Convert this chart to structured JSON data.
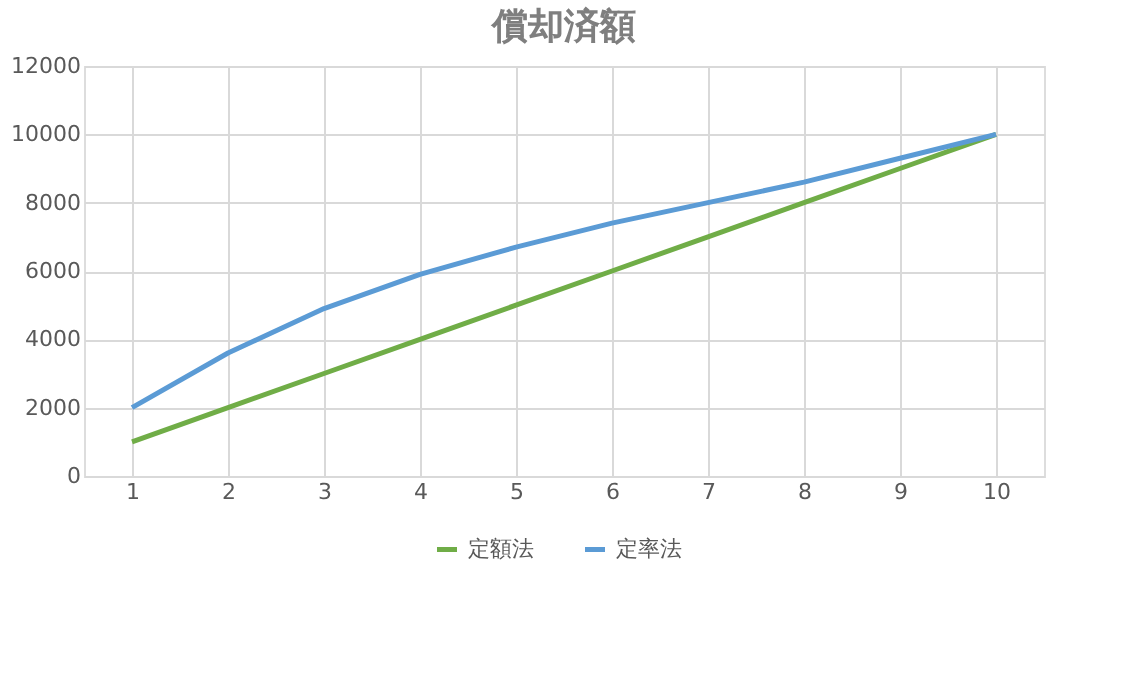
{
  "chart_data": {
    "type": "line",
    "title": "償却済額",
    "categories": [
      "1",
      "2",
      "3",
      "4",
      "5",
      "6",
      "7",
      "8",
      "9",
      "10"
    ],
    "series": [
      {
        "name": "定額法",
        "color": "#70ad47",
        "values": [
          1000,
          2000,
          3000,
          4000,
          5000,
          6000,
          7000,
          8000,
          9000,
          10000
        ]
      },
      {
        "name": "定率法",
        "color": "#5b9bd5",
        "values": [
          2000,
          3600,
          4900,
          5900,
          6700,
          7400,
          8000,
          8600,
          9300,
          10000
        ]
      }
    ],
    "ylim": [
      0,
      12000
    ],
    "yticks": [
      0,
      2000,
      4000,
      6000,
      8000,
      10000,
      12000
    ],
    "grid": true,
    "legend": "bottom",
    "marker": "none",
    "line_style": "solid"
  }
}
